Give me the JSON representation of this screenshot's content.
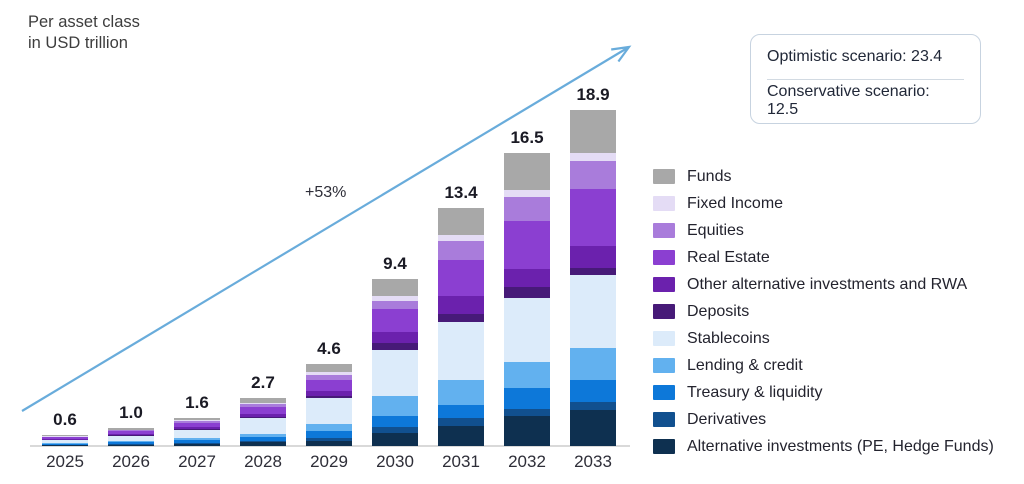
{
  "title": {
    "line1": "Per asset class",
    "line2": "in USD trillion"
  },
  "annotations": {
    "growth_label": "+53%"
  },
  "scenario_box": {
    "optimistic": "Optimistic scenario: 23.4",
    "conservative": "Conservative scenario: 12.5"
  },
  "colors": {
    "arrow": "#69acdb",
    "axis": "#d9d9d9",
    "scenario_border": "#c7d3e0",
    "text_dark": "#23232e"
  },
  "legend": {
    "items": [
      {
        "label": "Funds",
        "color": "#a8a8a8"
      },
      {
        "label": "Fixed Income",
        "color": "#e4dcf5"
      },
      {
        "label": "Equities",
        "color": "#a97cdb"
      },
      {
        "label": "Real Estate",
        "color": "#8b3fd1"
      },
      {
        "label": "Other alternative investments and RWA",
        "color": "#6b21ad"
      },
      {
        "label": "Deposits",
        "color": "#471a78"
      },
      {
        "label": "Stablecoins",
        "color": "#dcebfa"
      },
      {
        "label": "Lending & credit",
        "color": "#62b1ef"
      },
      {
        "label": "Treasury & liquidity",
        "color": "#0d78d9"
      },
      {
        "label": "Derivatives",
        "color": "#11508f"
      },
      {
        "label": "Alternative investments (PE, Hedge Funds)",
        "color": "#0e3050"
      }
    ]
  },
  "chart_data": {
    "type": "bar",
    "stacked": true,
    "title": "Per asset class in USD trillion",
    "unit": "USD trillion",
    "categories": [
      "2025",
      "2026",
      "2027",
      "2028",
      "2029",
      "2030",
      "2031",
      "2032",
      "2033"
    ],
    "totals": [
      0.6,
      1.0,
      1.6,
      2.7,
      4.6,
      9.4,
      13.4,
      16.5,
      18.9
    ],
    "total_labels": [
      "0.6",
      "1.0",
      "1.6",
      "2.7",
      "4.6",
      "9.4",
      "13.4",
      "16.5",
      "18.9"
    ],
    "stack_order": "bottom-to-top",
    "series": [
      {
        "name": "Alternative investments (PE, Hedge Funds)",
        "color": "#0e3050",
        "values": [
          0.05,
          0.08,
          0.12,
          0.2,
          0.3,
          0.75,
          1.15,
          1.7,
          2.0
        ]
      },
      {
        "name": "Derivatives",
        "color": "#11508f",
        "values": [
          0.03,
          0.04,
          0.06,
          0.1,
          0.15,
          0.3,
          0.4,
          0.4,
          0.45
        ]
      },
      {
        "name": "Treasury & liquidity",
        "color": "#0d78d9",
        "values": [
          0.06,
          0.09,
          0.14,
          0.2,
          0.4,
          0.65,
          0.75,
          1.15,
          1.25
        ]
      },
      {
        "name": "Lending & credit",
        "color": "#62b1ef",
        "values": [
          0.05,
          0.08,
          0.12,
          0.2,
          0.4,
          1.1,
          1.4,
          1.5,
          1.8
        ]
      },
      {
        "name": "Stablecoins",
        "color": "#dcebfa",
        "values": [
          0.15,
          0.28,
          0.45,
          0.85,
          1.45,
          2.6,
          3.3,
          3.6,
          4.1
        ]
      },
      {
        "name": "Deposits",
        "color": "#471a78",
        "values": [
          0.02,
          0.03,
          0.05,
          0.07,
          0.1,
          0.4,
          0.45,
          0.6,
          0.4
        ]
      },
      {
        "name": "Other alternative investments and RWA",
        "color": "#6b21ad",
        "values": [
          0.05,
          0.08,
          0.13,
          0.18,
          0.3,
          0.6,
          1.0,
          1.0,
          1.25
        ]
      },
      {
        "name": "Real Estate",
        "color": "#8b3fd1",
        "values": [
          0.08,
          0.15,
          0.25,
          0.4,
          0.6,
          1.3,
          2.0,
          2.7,
          3.2
        ]
      },
      {
        "name": "Equities",
        "color": "#a97cdb",
        "values": [
          0.04,
          0.07,
          0.11,
          0.18,
          0.3,
          0.45,
          1.1,
          1.35,
          1.6
        ]
      },
      {
        "name": "Fixed Income",
        "color": "#e4dcf5",
        "values": [
          0.02,
          0.03,
          0.05,
          0.07,
          0.15,
          0.3,
          0.35,
          0.4,
          0.45
        ]
      },
      {
        "name": "Funds",
        "color": "#a8a8a8",
        "values": [
          0.05,
          0.07,
          0.12,
          0.25,
          0.45,
          0.95,
          1.5,
          2.1,
          2.4
        ]
      }
    ],
    "annotations": {
      "growth_arrow_label": "+53%",
      "optimistic_scenario": 23.4,
      "conservative_scenario": 12.5
    },
    "axis": {
      "x_labels_visible": true,
      "y_axis_visible": false,
      "gridlines": false,
      "baseline_visible": true
    },
    "legend_position": "right"
  }
}
